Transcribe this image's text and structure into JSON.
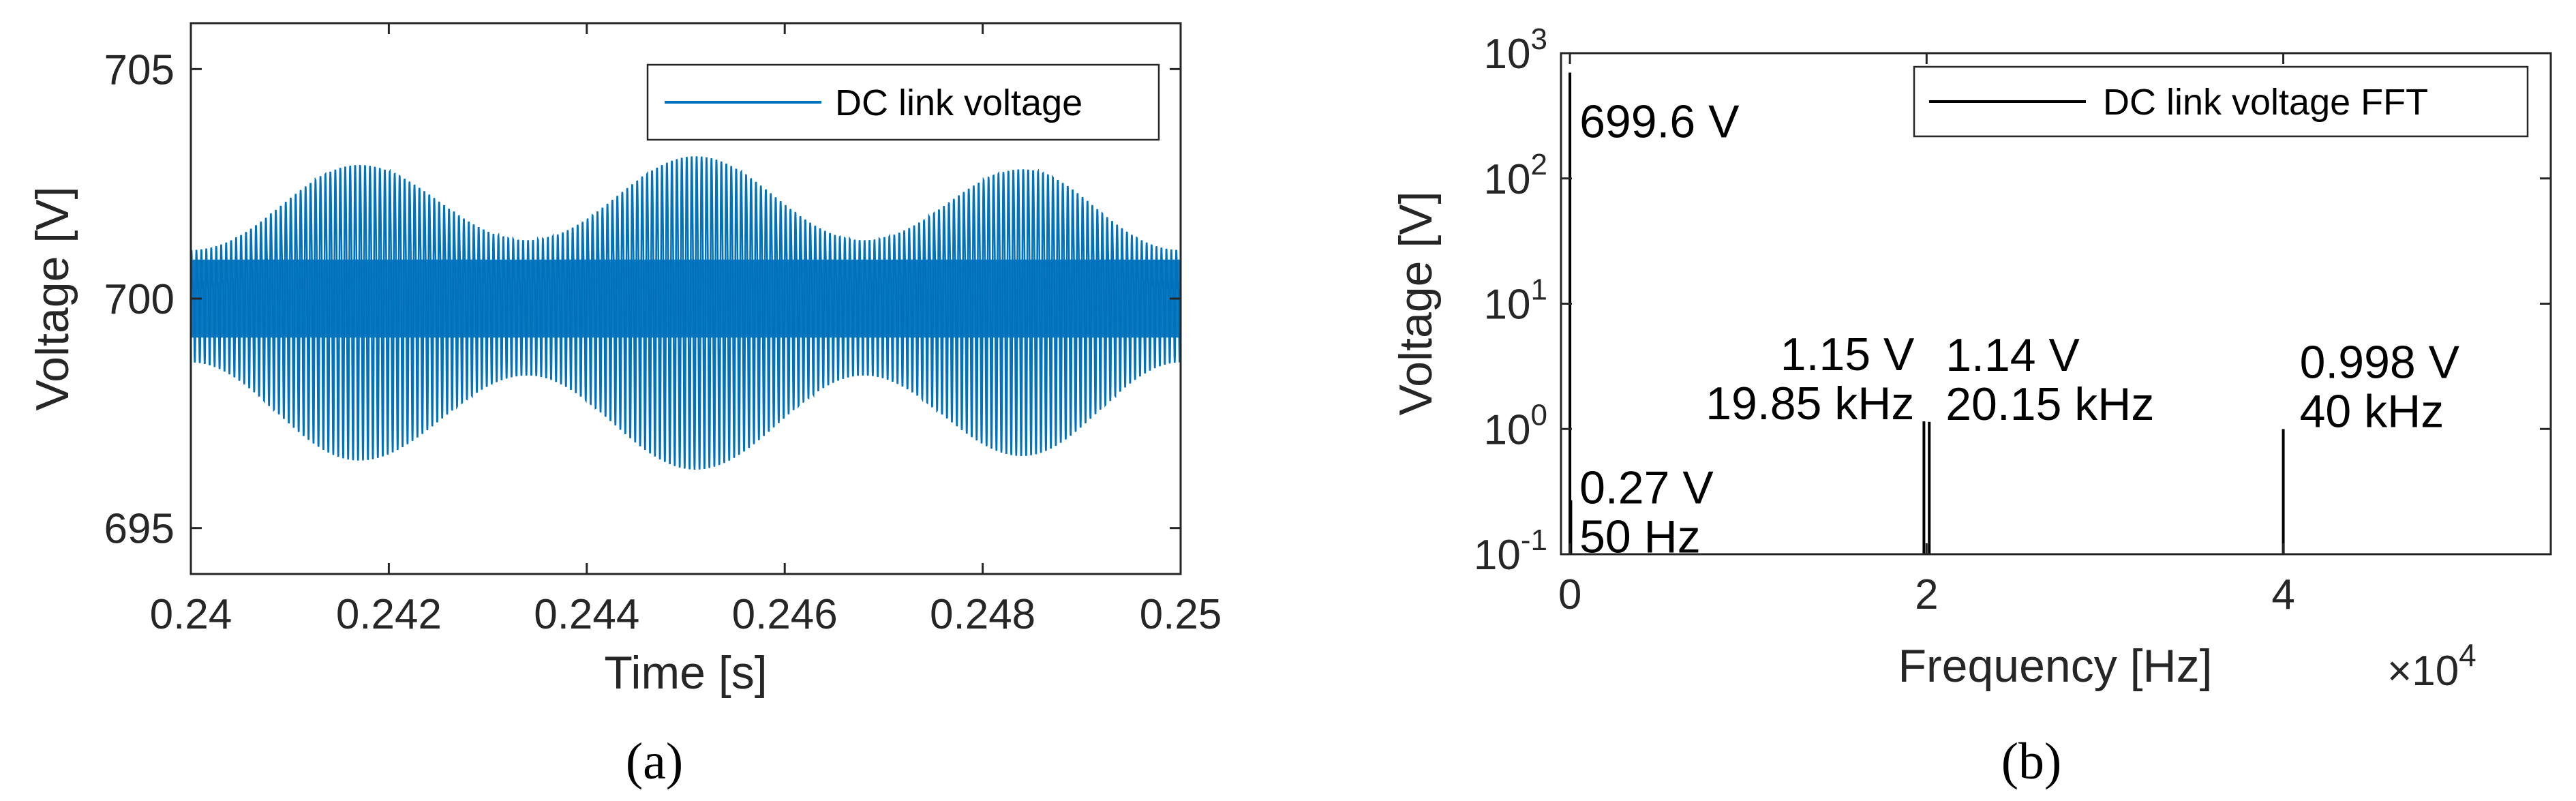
{
  "chart_data": [
    {
      "type": "line",
      "panel": "(a)",
      "xlabel": "Time [s]",
      "ylabel": "Voltage [V]",
      "xlim": [
        0.24,
        0.25
      ],
      "ylim": [
        694,
        706
      ],
      "xticks": [
        0.24,
        0.242,
        0.244,
        0.246,
        0.248,
        0.25
      ],
      "yticks": [
        695,
        700,
        705
      ],
      "legend": {
        "position": "top-right",
        "entries": [
          "DC link voltage"
        ]
      },
      "grid": false,
      "series": [
        {
          "name": "DC link voltage",
          "color": "#0072BD",
          "mean": 700,
          "ripple_frequency_hz": 20000,
          "envelope_peaks": [
            {
              "x": 0.24,
              "amplitude": 0.9
            },
            {
              "x": 0.2417,
              "amplitude": 3.1
            },
            {
              "x": 0.2434,
              "amplitude": 1.2
            },
            {
              "x": 0.2451,
              "amplitude": 3.3
            },
            {
              "x": 0.2468,
              "amplitude": 1.2
            },
            {
              "x": 0.2484,
              "amplitude": 3.0
            },
            {
              "x": 0.25,
              "amplitude": 0.9
            }
          ]
        }
      ]
    },
    {
      "type": "bar",
      "panel": "(b)",
      "xlabel": "Frequency [Hz]",
      "ylabel": "Voltage [V]",
      "xscale_label": "×10^4",
      "xlim": [
        -500,
        55000
      ],
      "ylim": [
        0.1,
        1000
      ],
      "yscale": "log",
      "xticks": [
        0,
        20000,
        40000
      ],
      "xticklabels": [
        "0",
        "2",
        "4"
      ],
      "yticks": [
        0.1,
        1,
        10,
        100,
        1000
      ],
      "legend": {
        "position": "top-right",
        "entries": [
          "DC link voltage FFT"
        ]
      },
      "grid": false,
      "series": [
        {
          "name": "DC link voltage FFT",
          "color": "#000000",
          "x": [
            0,
            50,
            19850,
            20150,
            40000
          ],
          "y": [
            699.6,
            0.27,
            1.15,
            1.14,
            0.998
          ]
        }
      ],
      "annotations": [
        {
          "lines": [
            "699.6 V"
          ]
        },
        {
          "lines": [
            "0.27 V",
            "50 Hz"
          ]
        },
        {
          "lines": [
            "1.15 V",
            "19.85 kHz"
          ]
        },
        {
          "lines": [
            "1.14 V",
            "20.15 kHz"
          ]
        },
        {
          "lines": [
            "0.998 V",
            "40 kHz"
          ]
        }
      ]
    }
  ]
}
